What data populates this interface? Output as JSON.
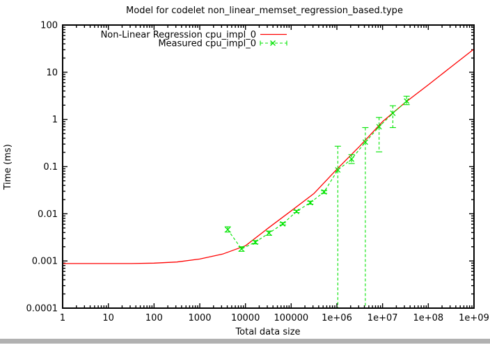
{
  "ui": {
    "background": "#ffffff",
    "scrollbar_color": "#b1b1b1",
    "text_color": "#000000"
  },
  "chart_data": {
    "type": "line",
    "title": "Model for codelet non_linear_memset_regression_based.type",
    "xlabel": "Total data size",
    "ylabel": "Time (ms)",
    "x_scale": "log",
    "y_scale": "log",
    "xlim": [
      1,
      1000000000
    ],
    "ylim": [
      0.0001,
      100
    ],
    "grid": false,
    "legend_position": "top-left-inside",
    "x_tick_labels": [
      "1",
      "10",
      "100",
      "1000",
      "10000",
      "100000",
      "1e+06",
      "1e+07",
      "1e+08",
      "1e+09"
    ],
    "y_tick_labels": [
      "100",
      "10",
      "1",
      "0.1",
      "0.01",
      "0.001",
      "0.0001"
    ],
    "series": [
      {
        "name": "Non-Linear Regression cpu_impl_0",
        "color": "#ff0000",
        "style": "solid-line",
        "points": [
          [
            1,
            0.00088
          ],
          [
            3.16,
            0.00088
          ],
          [
            10,
            0.00088
          ],
          [
            31.6,
            0.00088
          ],
          [
            100,
            0.0009
          ],
          [
            316,
            0.00095
          ],
          [
            1000,
            0.0011
          ],
          [
            3162,
            0.0014
          ],
          [
            10000,
            0.0021
          ],
          [
            31623,
            0.005
          ],
          [
            100000,
            0.0115
          ],
          [
            316228,
            0.027
          ],
          [
            1000000,
            0.088
          ],
          [
            3162278,
            0.27
          ],
          [
            10000000,
            0.9
          ],
          [
            31622777,
            2.3
          ],
          [
            100000000,
            5.4
          ],
          [
            316227766,
            13
          ],
          [
            1000000000,
            31
          ]
        ]
      },
      {
        "name": "Measured cpu_impl_0",
        "color": "#00e400",
        "style": "dashed-line-errorbars",
        "marker": "x",
        "points_note": "format: [x, y, y_low, y_high]; y_low null means error bar clipped at bottom axis",
        "points": [
          [
            4096,
            0.0046,
            0.0041,
            0.0053
          ],
          [
            8192,
            0.0018,
            0.0016,
            0.002
          ],
          [
            16384,
            0.0025,
            0.0023,
            0.0027
          ],
          [
            32768,
            0.0039,
            0.0035,
            0.0043
          ],
          [
            65536,
            0.0061,
            0.0058,
            0.0065
          ],
          [
            131072,
            0.0112,
            0.0106,
            0.0118
          ],
          [
            262144,
            0.0172,
            0.016,
            0.0185
          ],
          [
            524288,
            0.029,
            0.027,
            0.031
          ],
          [
            1048576,
            0.085,
            null,
            0.27
          ],
          [
            2097152,
            0.144,
            0.116,
            0.179
          ],
          [
            4194304,
            0.33,
            null,
            0.67
          ],
          [
            8388608,
            0.7,
            0.205,
            1.1
          ],
          [
            16777216,
            1.35,
            0.67,
            1.95
          ],
          [
            33554432,
            2.45,
            2.05,
            3.1
          ]
        ]
      }
    ]
  }
}
